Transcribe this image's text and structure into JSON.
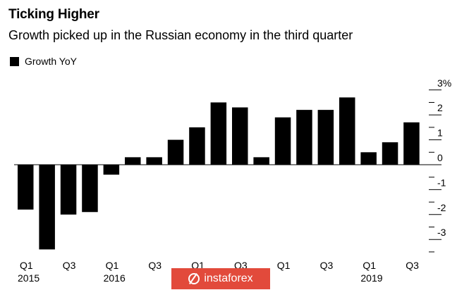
{
  "title": "Ticking Higher",
  "subtitle": "Growth picked up in the Russian economy in the third quarter",
  "legend": {
    "label": "Growth YoY",
    "color": "#000000"
  },
  "watermark": {
    "text": "instaforex",
    "color": "#e24a3b"
  },
  "chart_data": {
    "type": "bar",
    "title": "Ticking Higher",
    "subtitle": "Growth picked up in the Russian economy in the third quarter",
    "xlabel": "",
    "ylabel": "",
    "ylim": [
      -3.4,
      3.1
    ],
    "y_ticks": [
      {
        "value": 3,
        "label": "3%"
      },
      {
        "value": 2,
        "label": "2"
      },
      {
        "value": 1,
        "label": "1"
      },
      {
        "value": 0,
        "label": "0"
      },
      {
        "value": -1,
        "label": "-1"
      },
      {
        "value": -2,
        "label": "-2"
      },
      {
        "value": -3,
        "label": "-3"
      }
    ],
    "y_axis_position": "right",
    "grid": false,
    "legend_position": "top-left",
    "categories": [
      "Q1 2015",
      "Q2 2015",
      "Q3 2015",
      "Q4 2015",
      "Q1 2016",
      "Q2 2016",
      "Q3 2016",
      "Q4 2016",
      "Q1 2017",
      "Q2 2017",
      "Q3 2017",
      "Q4 2017",
      "Q1 2018",
      "Q2 2018",
      "Q3 2018",
      "Q4 2018",
      "Q1 2019",
      "Q2 2019",
      "Q3 2019"
    ],
    "x_tick_labels": [
      {
        "index": 0,
        "label": "Q1",
        "year": "2015"
      },
      {
        "index": 2,
        "label": "Q3",
        "year": ""
      },
      {
        "index": 4,
        "label": "Q1",
        "year": "2016"
      },
      {
        "index": 6,
        "label": "Q3",
        "year": ""
      },
      {
        "index": 8,
        "label": "Q1",
        "year": ""
      },
      {
        "index": 10,
        "label": "Q3",
        "year": ""
      },
      {
        "index": 12,
        "label": "Q1",
        "year": ""
      },
      {
        "index": 14,
        "label": "Q3",
        "year": ""
      },
      {
        "index": 16,
        "label": "Q1",
        "year": "2019"
      },
      {
        "index": 18,
        "label": "Q3",
        "year": ""
      }
    ],
    "series": [
      {
        "name": "Growth YoY",
        "color": "#000000",
        "values": [
          -1.8,
          -3.4,
          -2.0,
          -1.9,
          -0.4,
          0.3,
          0.3,
          1.0,
          1.5,
          2.5,
          2.3,
          0.3,
          1.9,
          2.2,
          2.2,
          2.7,
          0.5,
          0.9,
          1.7
        ]
      }
    ]
  }
}
